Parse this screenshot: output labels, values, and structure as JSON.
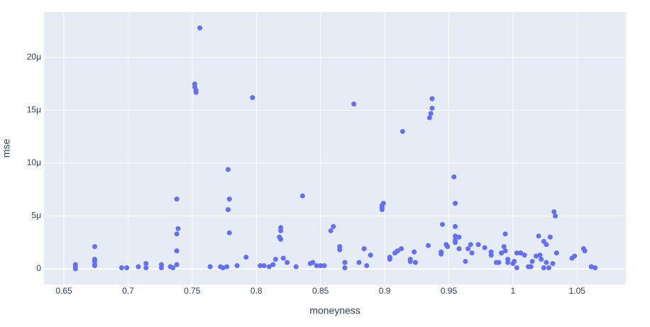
{
  "chart_data": {
    "type": "scatter",
    "x_label": "moneyness",
    "y_label": "mse",
    "color": "#636efa",
    "grid": true,
    "xlim": [
      0.6345,
      1.088
    ],
    "ylim": [
      -1.48e-06,
      2.43e-05
    ],
    "xticks": [
      0.65,
      0.7,
      0.75,
      0.8,
      0.85,
      0.9,
      0.95,
      1,
      1.05
    ],
    "yticks": [
      0,
      {
        "value": 5e-06,
        "label": "5μ"
      },
      {
        "value": 1e-05,
        "label": "10μ"
      },
      {
        "value": 1.5e-05,
        "label": "15μ"
      },
      {
        "value": 2e-05,
        "label": "20μ"
      }
    ],
    "x": [
      0.659,
      0.659,
      0.659,
      0.674,
      0.674,
      0.674,
      0.674,
      0.674,
      0.695,
      0.699,
      0.708,
      0.714,
      0.714,
      0.726,
      0.726,
      0.733,
      0.735,
      0.738,
      0.738,
      0.738,
      0.739,
      0.738,
      0.752,
      0.752,
      0.753,
      0.753,
      0.756,
      0.764,
      0.772,
      0.774,
      0.777,
      0.778,
      0.778,
      0.779,
      0.779,
      0.785,
      0.792,
      0.797,
      0.803,
      0.806,
      0.81,
      0.813,
      0.815,
      0.818,
      0.819,
      0.819,
      0.819,
      0.821,
      0.824,
      0.831,
      0.836,
      0.842,
      0.844,
      0.847,
      0.85,
      0.853,
      0.858,
      0.86,
      0.865,
      0.865,
      0.869,
      0.869,
      0.876,
      0.88,
      0.884,
      0.886,
      0.889,
      0.898,
      0.898,
      0.898,
      0.899,
      0.904,
      0.904,
      0.908,
      0.91,
      0.913,
      0.914,
      0.92,
      0.92,
      0.923,
      0.924,
      0.934,
      0.935,
      0.936,
      0.937,
      0.937,
      0.944,
      0.944,
      0.945,
      0.948,
      0.949,
      0.954,
      0.955,
      0.955,
      0.955,
      0.955,
      0.955,
      0.958,
      0.958,
      0.963,
      0.965,
      0.967,
      0.968,
      0.973,
      0.978,
      0.983,
      0.983,
      0.987,
      0.989,
      0.991,
      0.993,
      0.994,
      0.994,
      0.996,
      0.996,
      1.0,
      1.001,
      1.003,
      1.003,
      1.006,
      1.009,
      1.012,
      1.014,
      1.015,
      1.018,
      1.02,
      1.021,
      1.022,
      1.024,
      1.024,
      1.026,
      1.026,
      1.028,
      1.029,
      1.031,
      1.032,
      1.033,
      1.034,
      1.046,
      1.048,
      1.055,
      1.056,
      1.061,
      1.064
    ],
    "values": [
      4e-07,
      2e-07,
      0,
      2.1e-06,
      9e-07,
      7e-07,
      4e-07,
      3e-07,
      1e-07,
      1e-07,
      2e-07,
      5e-07,
      1e-07,
      4e-07,
      1e-07,
      2e-07,
      1e-07,
      6.6e-06,
      3.3e-06,
      1.7e-06,
      3.8e-06,
      4e-07,
      1.75e-05,
      1.72e-05,
      1.69e-05,
      1.67e-05,
      2.28e-05,
      2e-07,
      2e-07,
      1e-07,
      2e-07,
      9.4e-06,
      5.6e-06,
      6.6e-06,
      3.4e-06,
      3e-07,
      1.1e-06,
      1.62e-05,
      3e-07,
      3e-07,
      2e-07,
      4e-07,
      9e-07,
      3e-06,
      3.9e-06,
      3.6e-06,
      2.8e-06,
      1e-06,
      6e-07,
      2e-07,
      6.9e-06,
      5e-07,
      6e-07,
      3e-07,
      3e-07,
      3e-07,
      3.6e-06,
      4e-06,
      2.1e-06,
      1.8e-06,
      6e-07,
      1e-07,
      1.56e-05,
      6e-07,
      1.9e-06,
      3e-07,
      1.3e-06,
      6e-06,
      5.8e-06,
      5.6e-06,
      6.2e-06,
      9e-07,
      1.1e-06,
      1.5e-06,
      1.7e-06,
      1.9e-06,
      1.3e-05,
      9e-07,
      7e-07,
      1.6e-06,
      6e-07,
      2.2e-06,
      1.43e-05,
      1.47e-05,
      1.52e-05,
      1.61e-05,
      1.6e-06,
      1.4e-06,
      4.2e-06,
      2.3e-06,
      2.1e-06,
      8.7e-06,
      6.2e-06,
      4e-06,
      3.1e-06,
      2.7e-06,
      2.5e-06,
      3e-06,
      1.9e-06,
      7e-07,
      1.9e-06,
      2.3e-06,
      1.5e-06,
      2.3e-06,
      2e-06,
      1.6e-06,
      1.3e-06,
      6e-07,
      6e-07,
      1.5e-06,
      2.1e-06,
      1.7e-06,
      3.3e-06,
      9e-07,
      6e-07,
      5e-07,
      7e-07,
      1.5e-06,
      1e-07,
      1.5e-06,
      1.3e-06,
      2e-07,
      2e-07,
      7e-07,
      1.2e-06,
      3.1e-06,
      1.3e-06,
      9e-07,
      2.6e-06,
      1e-07,
      2.3e-06,
      6e-07,
      1e-07,
      3e-06,
      5e-07,
      5.4e-06,
      5e-06,
      1.5e-06,
      1e-06,
      1.2e-06,
      1.9e-06,
      1.7e-06,
      2e-07,
      1e-07
    ]
  }
}
